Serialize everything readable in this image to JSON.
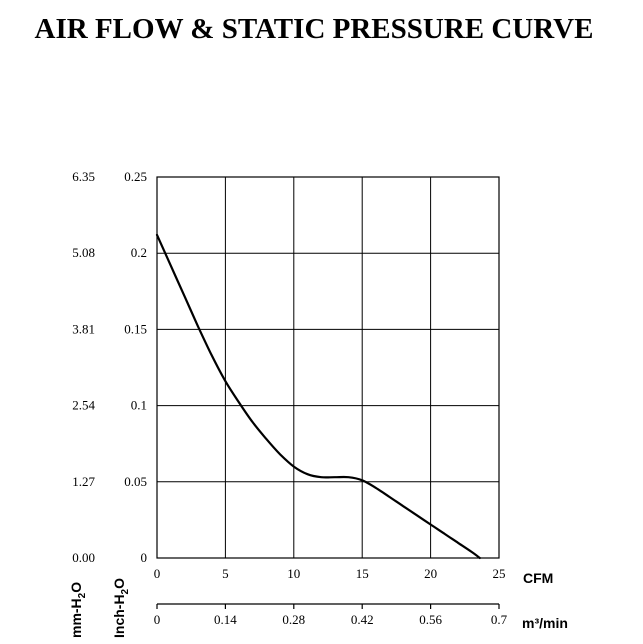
{
  "chart_data": {
    "type": "line",
    "title": "AIR FLOW & STATIC PRESSURE CURVE",
    "x_axis_primary": {
      "label": "CFM",
      "ticks": [
        "0",
        "5",
        "10",
        "15",
        "20",
        "25"
      ],
      "range": [
        0,
        25
      ]
    },
    "x_axis_secondary": {
      "label": "m³/min",
      "ticks": [
        "0",
        "0.14",
        "0.28",
        "0.42",
        "0.56",
        "0.7"
      ],
      "range": [
        0,
        0.7
      ]
    },
    "y_axis_inner": {
      "label": "Inch-H₂O",
      "label_main": "Inch-H",
      "label_sub": "2",
      "label_end": "O",
      "ticks": [
        "0",
        "0.05",
        "0.1",
        "0.15",
        "0.2",
        "0.25"
      ],
      "range": [
        0,
        0.25
      ]
    },
    "y_axis_outer": {
      "label": "mm-H₂O",
      "label_main": "mm-H",
      "label_sub": "2",
      "label_end": "O",
      "ticks": [
        "0.00",
        "1.27",
        "2.54",
        "3.81",
        "5.08",
        "6.35"
      ],
      "range": [
        0,
        6.35
      ]
    },
    "grid": true,
    "series": [
      {
        "x": [
          0,
          1,
          2,
          3,
          4,
          5,
          6,
          7,
          8,
          9,
          10,
          11,
          12,
          13,
          14,
          15,
          16,
          17,
          18,
          19,
          20,
          21,
          22,
          23,
          23.6
        ],
        "y": [
          0.212,
          0.192,
          0.172,
          0.152,
          0.133,
          0.116,
          0.102,
          0.089,
          0.078,
          0.068,
          0.06,
          0.055,
          0.053,
          0.053,
          0.053,
          0.051,
          0.046,
          0.04,
          0.034,
          0.028,
          0.022,
          0.016,
          0.01,
          0.004,
          0.0
        ]
      }
    ]
  }
}
